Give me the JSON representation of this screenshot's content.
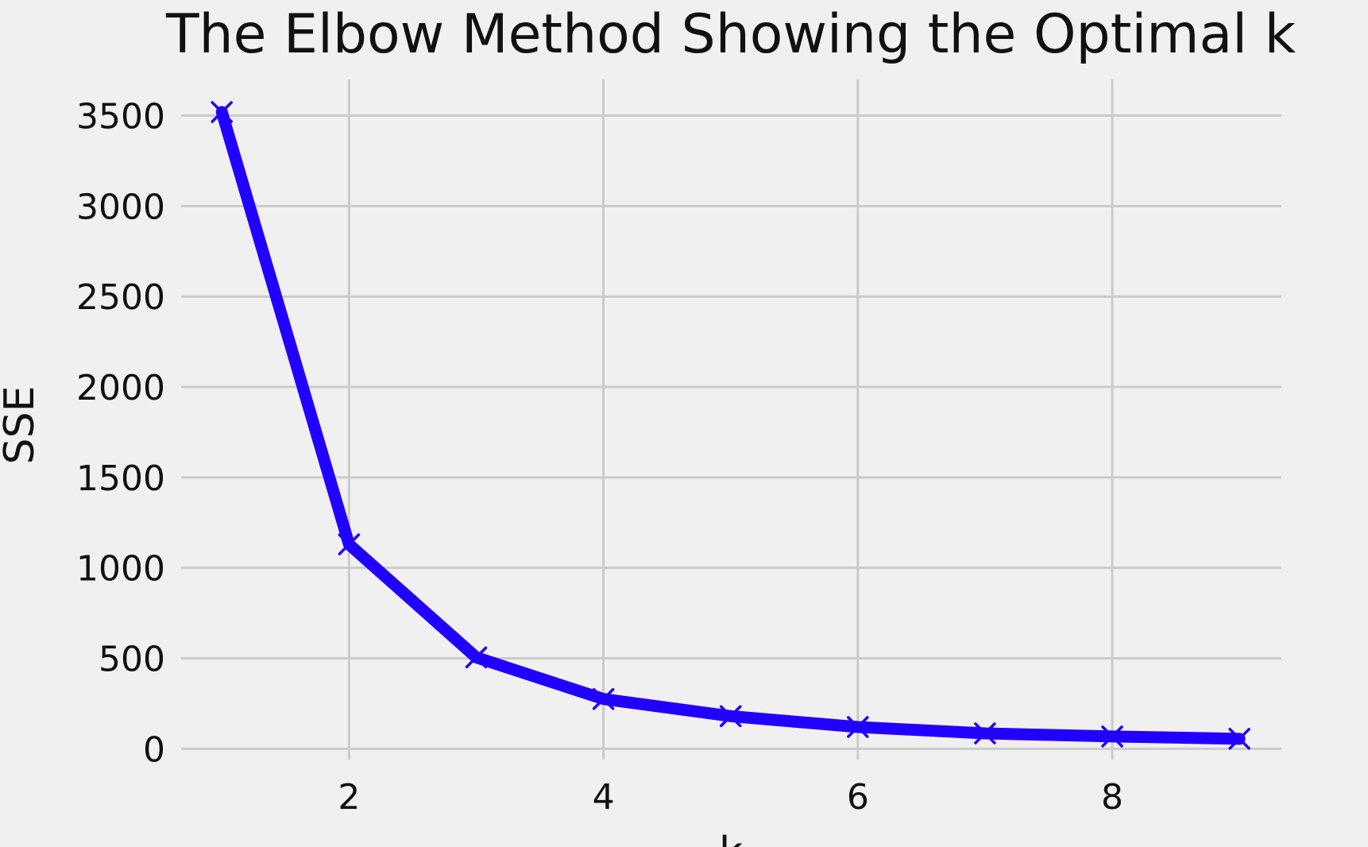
{
  "chart_data": {
    "type": "line",
    "title": "The Elbow Method Showing the Optimal k",
    "xlabel": "k",
    "ylabel": "SSE",
    "x": [
      1,
      2,
      3,
      4,
      5,
      6,
      7,
      8,
      9
    ],
    "series": [
      {
        "values": [
          3520,
          1130,
          505,
          275,
          180,
          120,
          85,
          68,
          55
        ]
      }
    ],
    "x_ticks": [
      2,
      4,
      6,
      8
    ],
    "y_ticks": [
      0,
      500,
      1000,
      1500,
      2000,
      2500,
      3000,
      3500
    ],
    "xlim": [
      0.68,
      9.33
    ],
    "ylim": [
      -60,
      3700
    ],
    "grid": true,
    "marker": "x",
    "colors": {
      "background": "#f0f0f0",
      "line": "#2200ff",
      "grid": "#cbcbcb"
    }
  }
}
